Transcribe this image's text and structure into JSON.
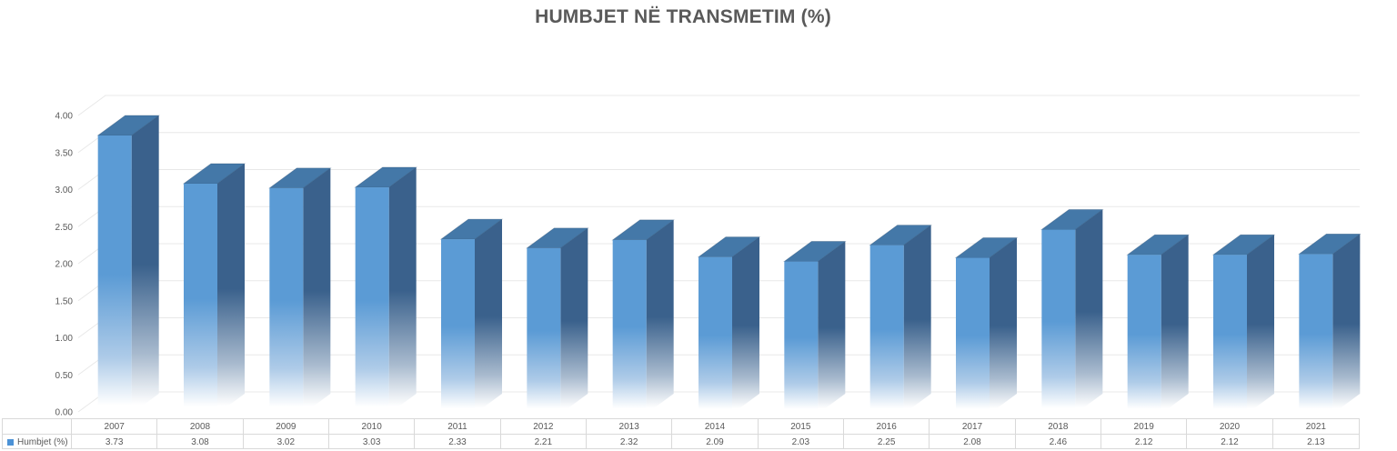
{
  "title": "HUMBJET NË TRANSMETIM (%)",
  "legend": {
    "label": "Humbjet (%)",
    "marker_color": "#4C92D6"
  },
  "chart_data": {
    "type": "bar",
    "projection": "3d",
    "title": "HUMBJET NË TRANSMETIM (%)",
    "categories": [
      "2007",
      "2008",
      "2009",
      "2010",
      "2011",
      "2012",
      "2013",
      "2014",
      "2015",
      "2016",
      "2017",
      "2018",
      "2019",
      "2020",
      "2021"
    ],
    "series": [
      {
        "name": "Humbjet (%)",
        "values": [
          3.73,
          3.08,
          3.02,
          3.03,
          2.33,
          2.21,
          2.32,
          2.09,
          2.03,
          2.25,
          2.08,
          2.46,
          2.12,
          2.12,
          2.13
        ]
      }
    ],
    "xlabel": "",
    "ylabel": "",
    "ylim": [
      0,
      4
    ],
    "ytick_step": 0.5,
    "ytick_labels": [
      "0.00",
      "0.50",
      "1.00",
      "1.50",
      "2.00",
      "2.50",
      "3.00",
      "3.50",
      "4.00"
    ],
    "grid": true,
    "legend_position": "bottom-table-row-header",
    "colors": {
      "bar_front": "#5B9BD5",
      "bar_front_fade": "#AECBE8",
      "bar_side": "#3A618C",
      "bar_side_fade": "#A8BACE",
      "bar_top": "#4478A8",
      "bar_edge": "#2F547A",
      "gridline": "#E8E8E8",
      "text": "#595959",
      "table_border": "#D9D9D9",
      "title": "#595959",
      "fade_to": "#FFFFFF"
    }
  }
}
